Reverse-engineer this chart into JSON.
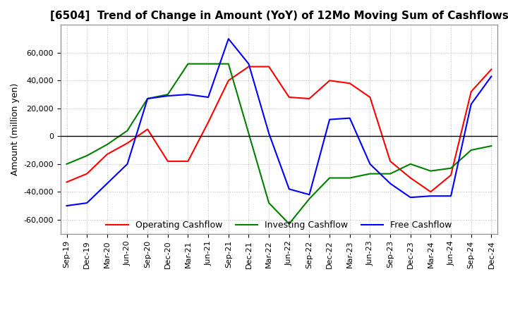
{
  "title": "[6504]  Trend of Change in Amount (YoY) of 12Mo Moving Sum of Cashflows",
  "ylabel": "Amount (million yen)",
  "ylim": [
    -70000,
    80000
  ],
  "yticks": [
    -60000,
    -40000,
    -20000,
    0,
    20000,
    40000,
    60000
  ],
  "x_labels": [
    "Sep-19",
    "Dec-19",
    "Mar-20",
    "Jun-20",
    "Sep-20",
    "Dec-20",
    "Mar-21",
    "Jun-21",
    "Sep-21",
    "Dec-21",
    "Mar-22",
    "Jun-22",
    "Sep-22",
    "Dec-22",
    "Mar-23",
    "Jun-23",
    "Sep-23",
    "Dec-23",
    "Mar-24",
    "Jun-24",
    "Sep-24",
    "Dec-24"
  ],
  "operating": [
    -33000,
    -27000,
    -13000,
    -5000,
    5000,
    -18000,
    -18000,
    10000,
    40000,
    50000,
    50000,
    28000,
    27000,
    40000,
    38000,
    28000,
    -18000,
    -30000,
    -40000,
    -28000,
    32000,
    48000
  ],
  "investing": [
    -20000,
    -14000,
    -6000,
    4000,
    27000,
    30000,
    52000,
    52000,
    52000,
    2000,
    -48000,
    -63000,
    -45000,
    -30000,
    -30000,
    -27000,
    -27000,
    -20000,
    -25000,
    -23000,
    -10000,
    -7000
  ],
  "free": [
    -50000,
    -48000,
    -34000,
    -20000,
    27000,
    29000,
    30000,
    28000,
    70000,
    52000,
    2000,
    -38000,
    -42000,
    12000,
    13000,
    -20000,
    -34000,
    -44000,
    -43000,
    -43000,
    23000,
    43000
  ],
  "operating_color": "#ff0000",
  "investing_color": "#008000",
  "free_color": "#0000ff",
  "background_color": "#ffffff",
  "grid_color": "#bbbbbb",
  "title_fontsize": 11,
  "tick_fontsize": 8,
  "legend_labels": [
    "Operating Cashflow",
    "Investing Cashflow",
    "Free Cashflow"
  ],
  "linewidth": 1.5
}
